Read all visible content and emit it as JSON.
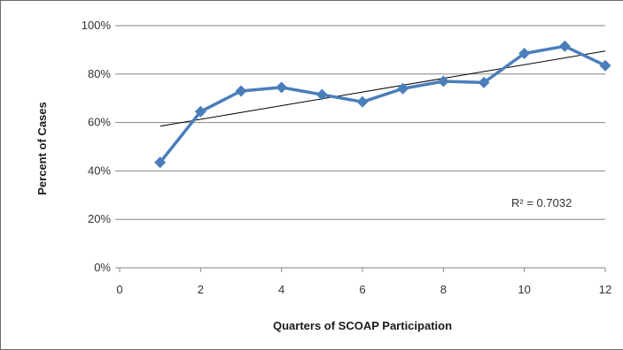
{
  "chart_data": {
    "type": "line",
    "title": "",
    "xlabel": "Quarters of SCOAP Participation",
    "ylabel": "Percent of Cases",
    "xlim": [
      0,
      12
    ],
    "ylim": [
      0,
      100
    ],
    "x_ticks": [
      "0",
      "2",
      "4",
      "6",
      "8",
      "10",
      "12"
    ],
    "y_ticks": [
      "0%",
      "20%",
      "40%",
      "60%",
      "80%",
      "100%"
    ],
    "grid": "horizontal",
    "legend": "none",
    "series": [
      {
        "x": [
          1,
          2,
          3,
          4,
          5,
          6,
          7,
          8,
          9,
          10,
          11,
          12
        ],
        "values": [
          43.5,
          64.5,
          73,
          74.5,
          71.5,
          68.5,
          74,
          77,
          76.5,
          88.5,
          91.5,
          83.5
        ],
        "color": "#4a7ebb",
        "marker": "diamond"
      }
    ],
    "trendline": {
      "type": "linear",
      "x_range": [
        1,
        12
      ],
      "y_start": 58.5,
      "y_end": 89.5,
      "color": "#000000"
    },
    "annotations": {
      "r_squared": "R² = 0.7032"
    }
  }
}
